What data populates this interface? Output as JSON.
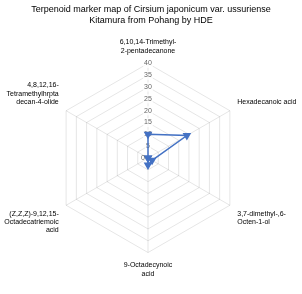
{
  "chart_data": {
    "type": "radar",
    "title": "Terpenoid marker map of Cirsium japonicum var. ussuriense\nKitamura from Pohang by HDE",
    "categories": [
      "6,10,14-Trimethyl-\n2-pentadecanone",
      "Hexadecanoic acid",
      "3,7-dimethyl-,6-\nOcten-1-ol",
      "9-Octadecynoic\nacid",
      "(Z,Z,Z)-9,12,15-\nOctadecatriemoic\nacid",
      "4,8,12,16-\nTetramethylhrpta\ndecan-4-olide"
    ],
    "values": [
      10,
      19,
      2,
      3,
      0,
      0
    ],
    "color": "#4472C4",
    "marker": "v",
    "ylim": [
      0,
      40
    ],
    "yticks": [
      0,
      5,
      10,
      15,
      20,
      25,
      30,
      35,
      40
    ],
    "grid": true
  }
}
